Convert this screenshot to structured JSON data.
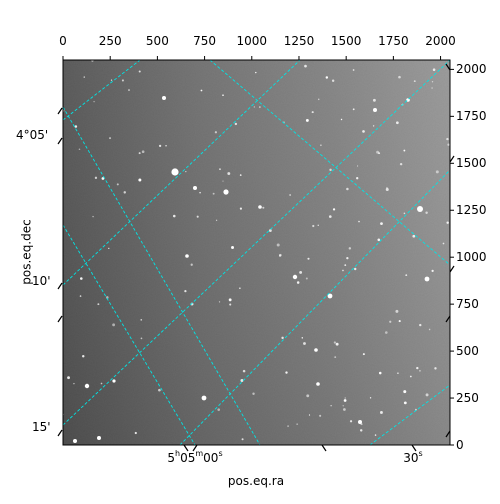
{
  "chart_data": {
    "type": "image",
    "xlabel": "pos.eq.ra",
    "ylabel": "pos.eq.dec",
    "pixel_axis_top": {
      "ticks": [
        0,
        250,
        500,
        750,
        1000,
        1250,
        1500,
        1750,
        2000
      ],
      "range": [
        0,
        2050
      ]
    },
    "pixel_axis_right": {
      "ticks": [
        0,
        250,
        500,
        750,
        1000,
        1250,
        1500,
        1750,
        2000
      ],
      "range": [
        0,
        2050
      ]
    },
    "world_axis_left": {
      "ticks": [
        "4°05'",
        "10'",
        "15'"
      ]
    },
    "world_axis_bottom": {
      "ticks": [
        {
          "h": "5",
          "m": "05",
          "s": "00"
        },
        {
          "s": "30"
        }
      ]
    },
    "grid": true,
    "grid_color": "#00e5e5",
    "colormap": "gray"
  }
}
